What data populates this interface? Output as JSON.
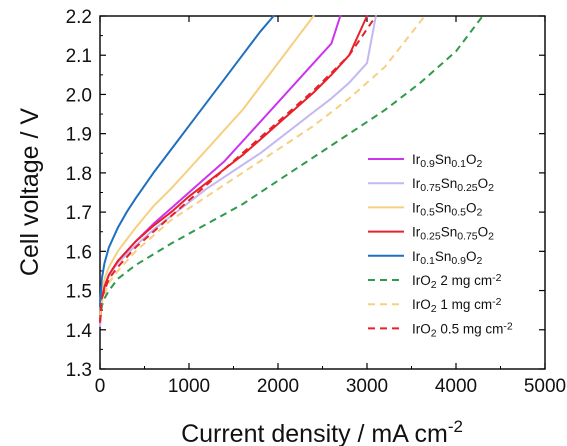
{
  "chart_data": {
    "type": "line",
    "title": "",
    "xlabel": {
      "text": "Current density / mA cm",
      "sup": "-2"
    },
    "ylabel": "Cell voltage / V",
    "xlim": [
      0,
      5000
    ],
    "ylim": [
      1.3,
      2.2
    ],
    "xticks": [
      0,
      1000,
      2000,
      3000,
      4000,
      5000
    ],
    "xtick_labels": [
      "0",
      "1000",
      "2000",
      "3000",
      "4000",
      "5000"
    ],
    "yticks": [
      1.3,
      1.4,
      1.5,
      1.6,
      1.7,
      1.8,
      1.9,
      2.0,
      2.1,
      2.2
    ],
    "ytick_labels": [
      "1.3",
      "1.4",
      "1.5",
      "1.6",
      "1.7",
      "1.8",
      "1.9",
      "2.0",
      "2.1",
      "2.2"
    ],
    "grid": false,
    "legend_position": "right-center",
    "series": [
      {
        "name": "Ir0.9Sn0.1O2",
        "label": [
          [
            "Ir",
            ""
          ],
          [
            "0.9",
            "sub"
          ],
          [
            "Sn",
            ""
          ],
          [
            "0.1",
            "sub"
          ],
          [
            "O",
            ""
          ],
          [
            "2",
            "sub"
          ]
        ],
        "color": "#cc33ee",
        "dash": "solid",
        "x": [
          0,
          20,
          50,
          100,
          200,
          400,
          600,
          800,
          1000,
          1200,
          1400,
          1600,
          1800,
          2000,
          2200,
          2400,
          2600,
          2700
        ],
        "y": [
          1.41,
          1.48,
          1.51,
          1.54,
          1.575,
          1.625,
          1.67,
          1.71,
          1.75,
          1.79,
          1.83,
          1.88,
          1.93,
          1.98,
          2.03,
          2.08,
          2.13,
          2.2
        ]
      },
      {
        "name": "Ir0.75Sn0.25O2",
        "label": [
          [
            "Ir",
            ""
          ],
          [
            "0.75",
            "sub"
          ],
          [
            "Sn",
            ""
          ],
          [
            "0.25",
            "sub"
          ],
          [
            "O",
            ""
          ],
          [
            "2",
            "sub"
          ]
        ],
        "color": "#c4b8f0",
        "dash": "solid",
        "x": [
          0,
          20,
          50,
          100,
          200,
          400,
          600,
          800,
          1000,
          1200,
          1400,
          1600,
          1800,
          2000,
          2200,
          2400,
          2600,
          2800,
          3000,
          3100
        ],
        "y": [
          1.41,
          1.48,
          1.51,
          1.54,
          1.57,
          1.615,
          1.655,
          1.69,
          1.725,
          1.76,
          1.79,
          1.82,
          1.85,
          1.885,
          1.92,
          1.955,
          1.99,
          2.03,
          2.08,
          2.2
        ]
      },
      {
        "name": "Ir0.5Sn0.5O2",
        "label": [
          [
            "Ir",
            ""
          ],
          [
            "0.5",
            "sub"
          ],
          [
            "Sn",
            ""
          ],
          [
            "0.5",
            "sub"
          ],
          [
            "O",
            ""
          ],
          [
            "2",
            "sub"
          ]
        ],
        "color": "#f5d080",
        "dash": "solid",
        "x": [
          0,
          20,
          50,
          100,
          200,
          400,
          600,
          800,
          1000,
          1200,
          1400,
          1600,
          1800,
          2000,
          2200,
          2400
        ],
        "y": [
          1.43,
          1.5,
          1.53,
          1.56,
          1.6,
          1.66,
          1.715,
          1.76,
          1.81,
          1.86,
          1.91,
          1.96,
          2.02,
          2.08,
          2.14,
          2.2
        ]
      },
      {
        "name": "Ir0.25Sn0.75O2",
        "label": [
          [
            "Ir",
            ""
          ],
          [
            "0.25",
            "sub"
          ],
          [
            "Sn",
            ""
          ],
          [
            "0.75",
            "sub"
          ],
          [
            "O",
            ""
          ],
          [
            "2",
            "sub"
          ]
        ],
        "color": "#e8202a",
        "dash": "solid",
        "x": [
          0,
          20,
          50,
          100,
          200,
          400,
          600,
          800,
          1000,
          1200,
          1400,
          1600,
          1800,
          2000,
          2200,
          2400,
          2600,
          2800,
          3000
        ],
        "y": [
          1.42,
          1.48,
          1.51,
          1.54,
          1.575,
          1.625,
          1.665,
          1.7,
          1.74,
          1.775,
          1.81,
          1.845,
          1.885,
          1.925,
          1.965,
          2.005,
          2.05,
          2.1,
          2.2
        ]
      },
      {
        "name": "Ir0.1Sn0.9O2",
        "label": [
          [
            "Ir",
            ""
          ],
          [
            "0.1",
            "sub"
          ],
          [
            "Sn",
            ""
          ],
          [
            "0.9",
            "sub"
          ],
          [
            "O",
            ""
          ],
          [
            "2",
            "sub"
          ]
        ],
        "color": "#1f6fbf",
        "dash": "solid",
        "x": [
          0,
          20,
          50,
          100,
          200,
          300,
          400,
          600,
          800,
          1000,
          1200,
          1400,
          1600,
          1800,
          1950
        ],
        "y": [
          1.46,
          1.53,
          1.57,
          1.61,
          1.66,
          1.7,
          1.735,
          1.8,
          1.86,
          1.92,
          1.98,
          2.04,
          2.1,
          2.16,
          2.2
        ]
      },
      {
        "name": "IrO2 2 mg cm-2",
        "label": [
          [
            "IrO",
            ""
          ],
          [
            "2",
            "sub"
          ],
          [
            " 2 mg cm",
            ""
          ],
          [
            "-2",
            "sup"
          ]
        ],
        "color": "#2e9a4a",
        "dash": "dashed",
        "x": [
          0,
          20,
          50,
          100,
          200,
          400,
          800,
          1200,
          1600,
          2000,
          2400,
          2800,
          3200,
          3600,
          4000,
          4300
        ],
        "y": [
          1.42,
          1.46,
          1.48,
          1.5,
          1.53,
          1.565,
          1.62,
          1.67,
          1.72,
          1.78,
          1.84,
          1.9,
          1.96,
          2.03,
          2.11,
          2.2
        ]
      },
      {
        "name": "IrO2 1 mg cm-2",
        "label": [
          [
            "IrO",
            ""
          ],
          [
            "2",
            "sub"
          ],
          [
            " 1 mg cm",
            ""
          ],
          [
            "-2",
            "sup"
          ]
        ],
        "color": "#f5d080",
        "dash": "dashed",
        "x": [
          0,
          20,
          50,
          100,
          200,
          400,
          600,
          800,
          1200,
          1600,
          2000,
          2400,
          2800,
          3200,
          3650
        ],
        "y": [
          1.43,
          1.47,
          1.49,
          1.52,
          1.55,
          1.6,
          1.64,
          1.68,
          1.74,
          1.8,
          1.86,
          1.92,
          1.99,
          2.07,
          2.2
        ]
      },
      {
        "name": "IrO2 0.5 mg cm-2",
        "label": [
          [
            "IrO",
            ""
          ],
          [
            "2",
            "sub"
          ],
          [
            " 0.5 mg cm",
            ""
          ],
          [
            "-2",
            "sup"
          ]
        ],
        "color": "#e8202a",
        "dash": "dashed",
        "x": [
          0,
          20,
          50,
          100,
          200,
          400,
          600,
          800,
          1200,
          1600,
          2000,
          2400,
          2800,
          3100
        ],
        "y": [
          1.42,
          1.48,
          1.5,
          1.53,
          1.56,
          1.61,
          1.65,
          1.69,
          1.77,
          1.85,
          1.93,
          2.01,
          2.1,
          2.2
        ]
      }
    ]
  }
}
